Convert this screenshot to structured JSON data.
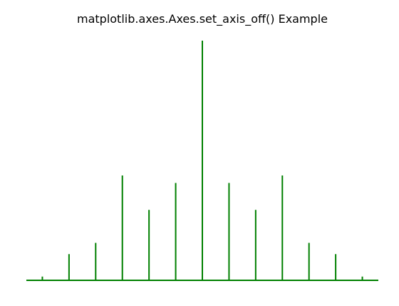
{
  "chart_data": {
    "type": "stem",
    "title": "matplotlib.axes.Axes.set_axis_off() Example",
    "xlabel": "",
    "ylabel": "",
    "axis_visible": false,
    "grid": false,
    "x": [
      -6,
      -5,
      -4,
      -3,
      -2,
      -1,
      0,
      1,
      2,
      3,
      4,
      5,
      6
    ],
    "y": [
      0.05,
      0.35,
      0.5,
      1.4,
      0.94,
      1.3,
      3.2,
      1.3,
      0.94,
      1.4,
      0.5,
      0.35,
      0.05
    ],
    "baseline": 0,
    "color": "#008000"
  }
}
